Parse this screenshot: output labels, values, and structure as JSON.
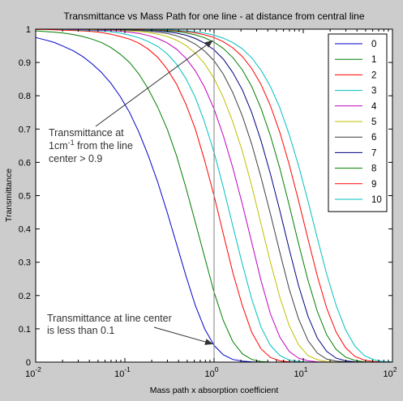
{
  "chart_data": {
    "type": "line",
    "title": "Transmittance vs Mass Path for one line - at distance from central line",
    "xlabel": "Mass path x absorption coefficient",
    "ylabel": "Transmittance",
    "xscale": "log",
    "xlim": [
      0.01,
      100
    ],
    "ylim": [
      0,
      1
    ],
    "x_ticks": [
      {
        "value": 0.01,
        "base": "10",
        "exp": "-2"
      },
      {
        "value": 0.1,
        "base": "10",
        "exp": "-1"
      },
      {
        "value": 1,
        "base": "10",
        "exp": "0"
      },
      {
        "value": 10,
        "base": "10",
        "exp": "1"
      },
      {
        "value": 100,
        "base": "10",
        "exp": "2"
      }
    ],
    "y_ticks": [
      "0",
      "0.1",
      "0.2",
      "0.3",
      "0.4",
      "0.5",
      "0.6",
      "0.7",
      "0.8",
      "0.9",
      "1"
    ],
    "grid": false,
    "legend_position": "top-right",
    "x": [
      0.01,
      0.0127,
      0.0162,
      0.0207,
      0.0264,
      0.0336,
      0.0428,
      0.0546,
      0.0695,
      0.0886,
      0.113,
      0.144,
      0.183,
      0.234,
      0.298,
      0.379,
      0.483,
      0.616,
      0.785,
      1.0,
      1.27,
      1.62,
      2.07,
      2.64,
      3.36,
      4.28,
      5.46,
      6.95,
      8.86,
      11.3,
      14.4,
      18.3,
      23.4,
      29.8,
      37.9,
      48.3,
      61.6,
      78.5,
      100
    ],
    "series": [
      {
        "name": "0",
        "color": "#0000cc",
        "values": [
          0.975,
          0.968,
          0.96,
          0.948,
          0.935,
          0.918,
          0.896,
          0.87,
          0.838,
          0.798,
          0.75,
          0.69,
          0.62,
          0.54,
          0.45,
          0.355,
          0.26,
          0.17,
          0.1,
          0.05,
          0.022,
          0.008,
          0.003,
          0.001,
          0,
          0,
          0,
          0,
          0,
          0,
          0,
          0,
          0,
          0,
          0,
          0,
          0,
          0,
          0
        ]
      },
      {
        "name": "1",
        "color": "#007f00",
        "values": [
          0.995,
          0.993,
          0.991,
          0.988,
          0.984,
          0.978,
          0.97,
          0.96,
          0.945,
          0.925,
          0.9,
          0.865,
          0.82,
          0.765,
          0.7,
          0.62,
          0.525,
          0.42,
          0.315,
          0.21,
          0.125,
          0.062,
          0.025,
          0.008,
          0.002,
          0,
          0,
          0,
          0,
          0,
          0,
          0,
          0,
          0,
          0,
          0,
          0,
          0,
          0
        ]
      },
      {
        "name": "2",
        "color": "#ff0000",
        "values": [
          0.999,
          0.999,
          0.998,
          0.997,
          0.996,
          0.995,
          0.993,
          0.99,
          0.985,
          0.978,
          0.97,
          0.958,
          0.94,
          0.915,
          0.88,
          0.835,
          0.775,
          0.7,
          0.605,
          0.5,
          0.385,
          0.27,
          0.17,
          0.09,
          0.04,
          0.014,
          0.004,
          0.001,
          0,
          0,
          0,
          0,
          0,
          0,
          0,
          0,
          0,
          0,
          0
        ]
      },
      {
        "name": "3",
        "color": "#00bfbf",
        "values": [
          1,
          1,
          1,
          0.999,
          0.998,
          0.997,
          0.996,
          0.995,
          0.992,
          0.988,
          0.982,
          0.974,
          0.963,
          0.948,
          0.926,
          0.895,
          0.852,
          0.795,
          0.72,
          0.63,
          0.525,
          0.41,
          0.295,
          0.19,
          0.105,
          0.05,
          0.02,
          0.006,
          0.002,
          0,
          0,
          0,
          0,
          0,
          0,
          0,
          0,
          0,
          0
        ]
      },
      {
        "name": "4",
        "color": "#bf00bf",
        "values": [
          1,
          1,
          1,
          1,
          0.999,
          0.999,
          0.998,
          0.997,
          0.996,
          0.994,
          0.991,
          0.987,
          0.981,
          0.972,
          0.959,
          0.94,
          0.913,
          0.875,
          0.825,
          0.76,
          0.68,
          0.585,
          0.475,
          0.36,
          0.245,
          0.145,
          0.075,
          0.032,
          0.012,
          0.004,
          0.001,
          0,
          0,
          0,
          0,
          0,
          0,
          0,
          0
        ]
      },
      {
        "name": "5",
        "color": "#bfbf00",
        "values": [
          1,
          1,
          1,
          1,
          1,
          1,
          0.999,
          0.999,
          0.998,
          0.997,
          0.995,
          0.993,
          0.99,
          0.985,
          0.978,
          0.967,
          0.951,
          0.928,
          0.896,
          0.852,
          0.795,
          0.722,
          0.634,
          0.53,
          0.415,
          0.3,
          0.195,
          0.11,
          0.052,
          0.02,
          0.007,
          0.002,
          0,
          0,
          0,
          0,
          0,
          0,
          0
        ]
      },
      {
        "name": "6",
        "color": "#3f3f3f",
        "values": [
          1,
          1,
          1,
          1,
          1,
          1,
          1,
          0.999,
          0.999,
          0.998,
          0.997,
          0.996,
          0.994,
          0.991,
          0.987,
          0.98,
          0.97,
          0.955,
          0.934,
          0.905,
          0.865,
          0.81,
          0.74,
          0.655,
          0.555,
          0.445,
          0.33,
          0.22,
          0.13,
          0.065,
          0.027,
          0.009,
          0.003,
          0.001,
          0,
          0,
          0,
          0,
          0
        ]
      },
      {
        "name": "7",
        "color": "#000080",
        "values": [
          1,
          1,
          1,
          1,
          1,
          1,
          1,
          1,
          1,
          0.999,
          0.998,
          0.998,
          0.997,
          0.995,
          0.992,
          0.988,
          0.982,
          0.972,
          0.958,
          0.938,
          0.91,
          0.87,
          0.818,
          0.75,
          0.665,
          0.565,
          0.455,
          0.34,
          0.23,
          0.138,
          0.072,
          0.032,
          0.012,
          0.004,
          0.001,
          0,
          0,
          0,
          0
        ]
      },
      {
        "name": "8",
        "color": "#007f00",
        "values": [
          1,
          1,
          1,
          1,
          1,
          1,
          1,
          1,
          1,
          1,
          0.999,
          0.999,
          0.998,
          0.997,
          0.995,
          0.993,
          0.989,
          0.983,
          0.974,
          0.961,
          0.942,
          0.915,
          0.878,
          0.828,
          0.762,
          0.68,
          0.582,
          0.472,
          0.356,
          0.246,
          0.152,
          0.082,
          0.038,
          0.015,
          0.005,
          0.001,
          0,
          0,
          0
        ]
      },
      {
        "name": "9",
        "color": "#ff0000",
        "values": [
          1,
          1,
          1,
          1,
          1,
          1,
          1,
          1,
          1,
          1,
          1,
          0.999,
          0.999,
          0.998,
          0.997,
          0.995,
          0.993,
          0.989,
          0.983,
          0.975,
          0.962,
          0.944,
          0.918,
          0.882,
          0.834,
          0.77,
          0.69,
          0.594,
          0.485,
          0.37,
          0.258,
          0.162,
          0.09,
          0.043,
          0.017,
          0.006,
          0.002,
          0,
          0
        ]
      },
      {
        "name": "10",
        "color": "#00bfbf",
        "values": [
          1,
          1,
          1,
          1,
          1,
          1,
          1,
          1,
          1,
          1,
          1,
          1,
          0.999,
          0.999,
          0.998,
          0.997,
          0.995,
          0.992,
          0.988,
          0.982,
          0.973,
          0.96,
          0.941,
          0.914,
          0.877,
          0.828,
          0.764,
          0.684,
          0.59,
          0.484,
          0.372,
          0.264,
          0.17,
          0.097,
          0.048,
          0.02,
          0.007,
          0.002,
          0.001
        ]
      }
    ],
    "vline_x": 1,
    "annotations": [
      {
        "lines": [
          "Transmittance at",
          "1cm from the line",
          "center > 0.9"
        ],
        "superscript": {
          "line": 1,
          "after": "1cm",
          "text": "-1"
        },
        "arrow_to": {
          "x": 1,
          "y": 0.975
        }
      },
      {
        "lines": [
          "Transmittance at line center",
          "is less than 0.1"
        ],
        "arrow_to": {
          "x": 1,
          "y": 0.05
        }
      }
    ]
  }
}
